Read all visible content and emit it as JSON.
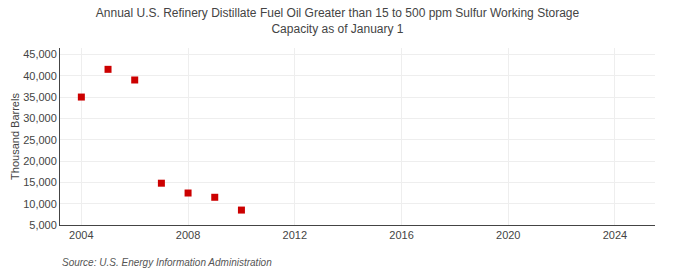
{
  "chart_data": {
    "type": "scatter",
    "title": "Annual U.S. Refinery Distillate Fuel Oil Greater than 15 to 500 ppm Sulfur Working Storage\nCapacity as of January 1",
    "ylabel": "Thousand Barrels",
    "annotations": [
      "Source: U.S. Energy Information Administration"
    ],
    "x": [
      2004,
      2005,
      2006,
      2007,
      2008,
      2009,
      2010
    ],
    "values": [
      35000,
      41500,
      39000,
      14800,
      12500,
      11500,
      8500
    ],
    "color": "#cc0000",
    "marker": "square",
    "xlim": [
      2003.2,
      2025.5
    ],
    "ylim": [
      5000,
      46500
    ],
    "xticks": [
      2004,
      2008,
      2012,
      2016,
      2020,
      2024
    ],
    "yticks": [
      {
        "value": 5000,
        "label": "5,000"
      },
      {
        "value": 10000,
        "label": "10,000"
      },
      {
        "value": 15000,
        "label": "15,000"
      },
      {
        "value": 20000,
        "label": "20,000"
      },
      {
        "value": 25000,
        "label": "25,000"
      },
      {
        "value": 30000,
        "label": "30,000"
      },
      {
        "value": 35000,
        "label": "35,000"
      },
      {
        "value": 40000,
        "label": "40,000"
      },
      {
        "value": 45000,
        "label": "45,000"
      }
    ],
    "grid": true
  }
}
